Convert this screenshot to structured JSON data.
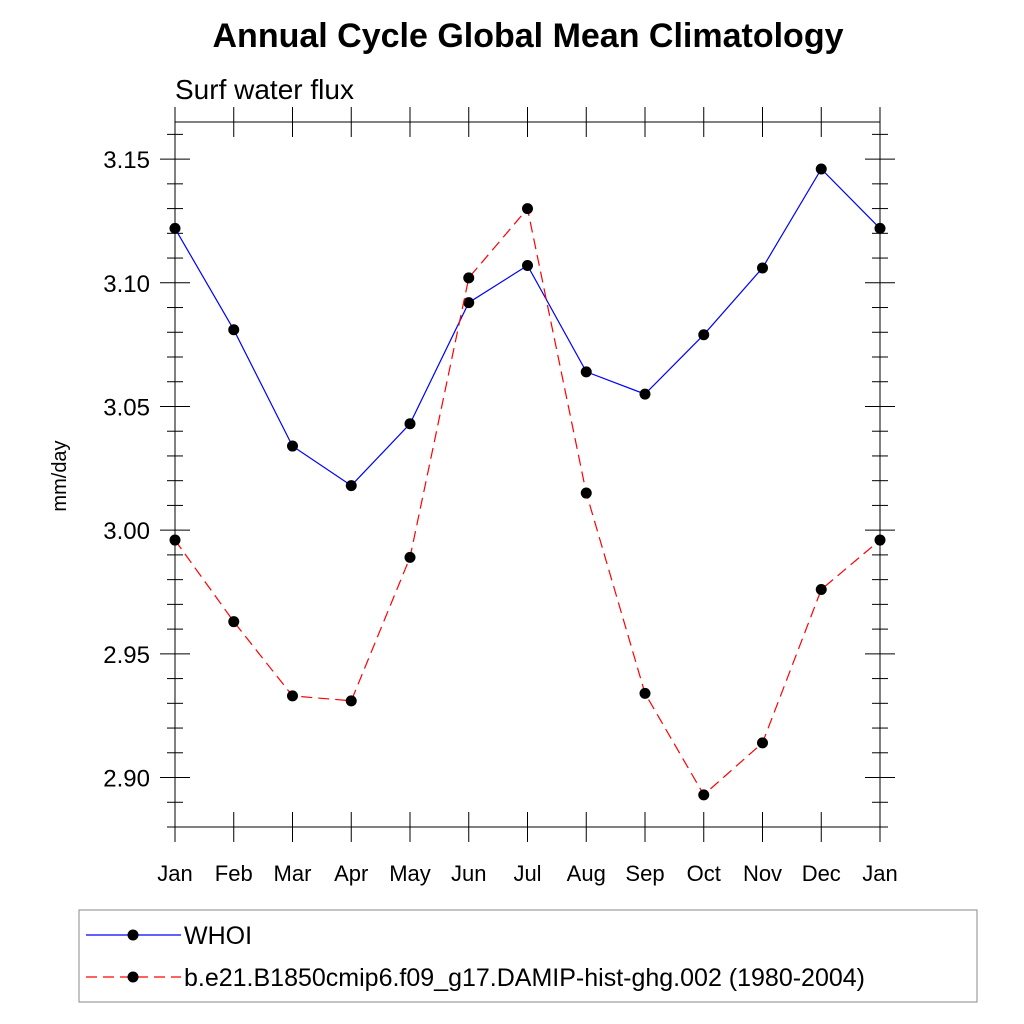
{
  "chart_data": {
    "type": "line",
    "title": "Annual Cycle Global Mean Climatology",
    "subtitle": "Surf water flux",
    "xlabel": "",
    "ylabel": "mm/day",
    "categories": [
      "Jan",
      "Feb",
      "Mar",
      "Apr",
      "May",
      "Jun",
      "Jul",
      "Aug",
      "Sep",
      "Oct",
      "Nov",
      "Dec",
      "Jan"
    ],
    "ylim": [
      2.88,
      3.165
    ],
    "yticks": [
      2.9,
      2.95,
      3.0,
      3.05,
      3.1,
      3.15
    ],
    "ytick_labels": [
      "2.90",
      "2.95",
      "3.00",
      "3.05",
      "3.10",
      "3.15"
    ],
    "grid": false,
    "legend_position": "bottom",
    "series": [
      {
        "name": "WHOI",
        "color": "#0000ff",
        "dash": "solid",
        "marker": "filled-circle",
        "values": [
          3.122,
          3.081,
          3.034,
          3.018,
          3.043,
          3.092,
          3.107,
          3.064,
          3.055,
          3.079,
          3.106,
          3.146,
          3.122
        ]
      },
      {
        "name": "b.e21.B1850cmip6.f09_g17.DAMIP-hist-ghg.002 (1980-2004)",
        "color": "#ff0000",
        "dash": "dashed",
        "marker": "filled-circle",
        "values": [
          2.996,
          2.963,
          2.933,
          2.931,
          2.989,
          3.102,
          3.13,
          3.015,
          2.934,
          2.893,
          2.914,
          2.976,
          2.996
        ]
      }
    ]
  }
}
